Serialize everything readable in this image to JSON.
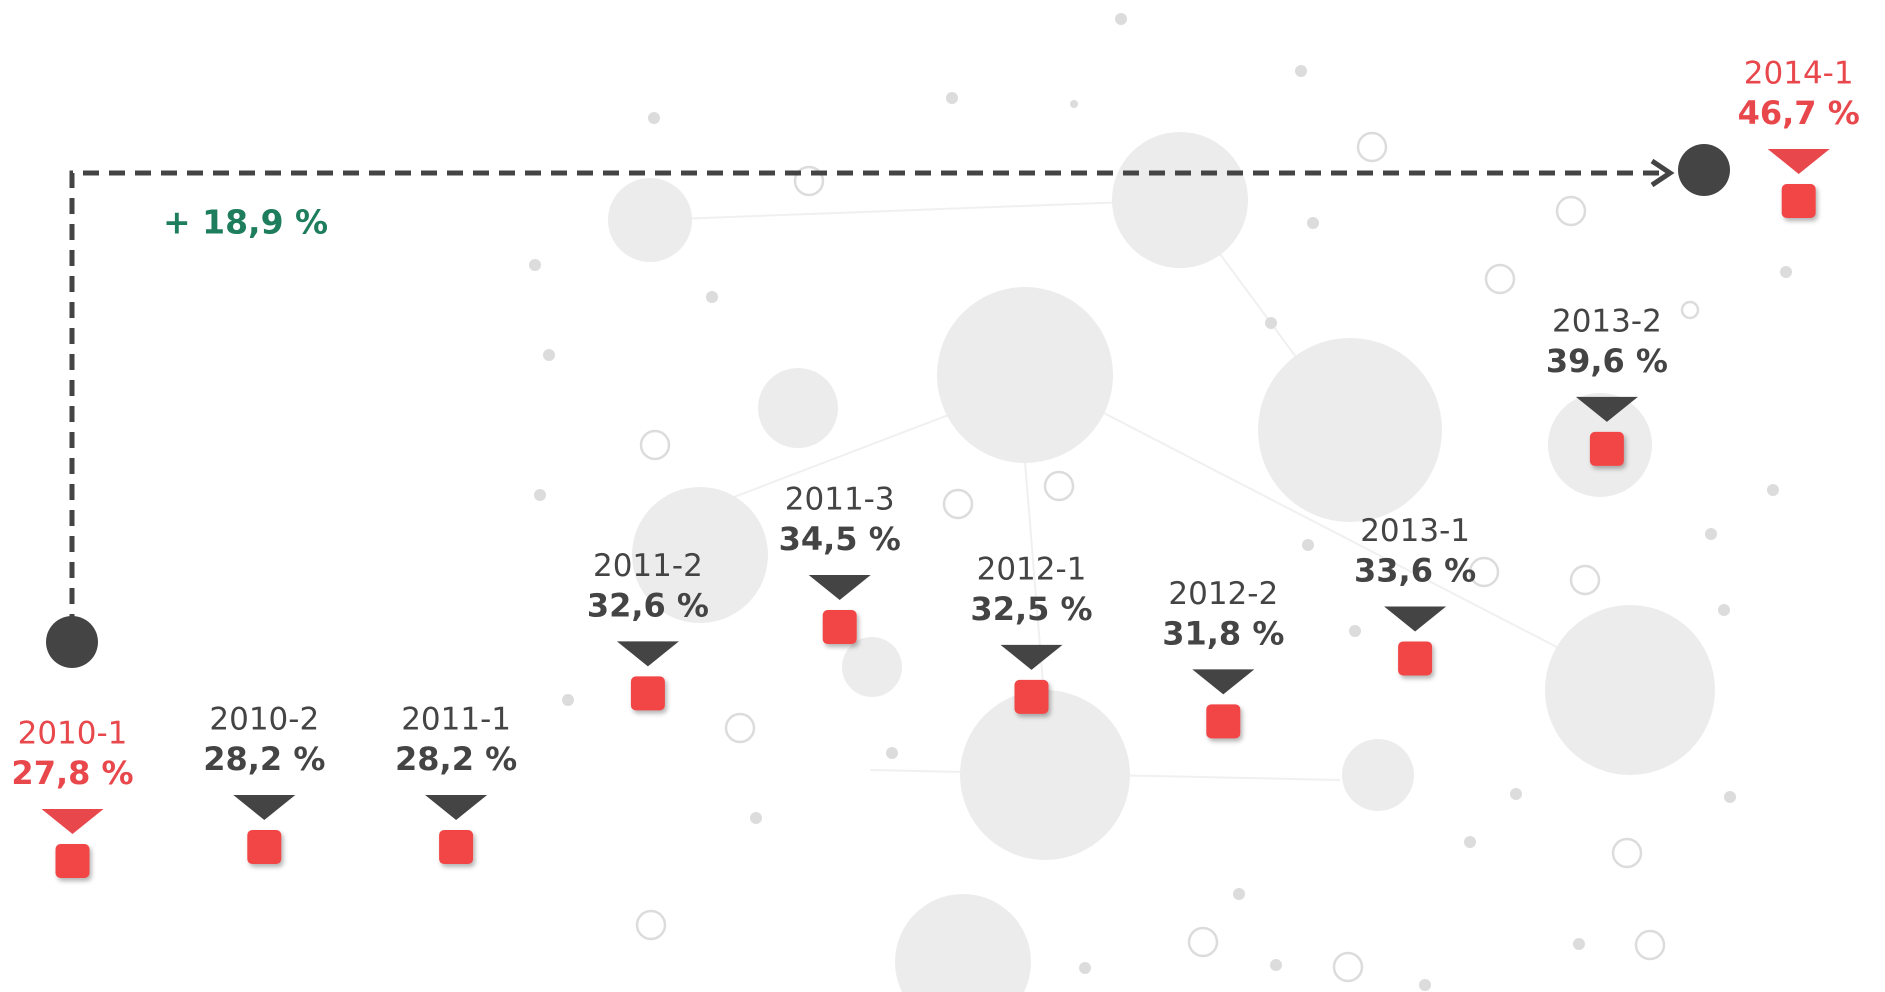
{
  "chart_data": {
    "type": "marker",
    "categories": [
      "2010-1",
      "2010-2",
      "2011-1",
      "2011-2",
      "2011-3",
      "2012-1",
      "2012-2",
      "2013-1",
      "2013-2",
      "2014-1"
    ],
    "values": [
      27.8,
      28.2,
      28.2,
      32.6,
      34.5,
      32.5,
      31.8,
      33.6,
      39.6,
      46.7
    ],
    "value_labels": [
      "27,8 %",
      "28,2 %",
      "28,2 %",
      "32,6 %",
      "34,5 %",
      "32,5 %",
      "31,8 %",
      "33,6 %",
      "39,6 %",
      "46,7 %"
    ],
    "color": "#f24545",
    "label_colors": [
      "#e8474c",
      "#444444",
      "#444444",
      "#444444",
      "#444444",
      "#444444",
      "#444444",
      "#444444",
      "#444444",
      "#e8474c"
    ],
    "annotation": "+ 18,9 %",
    "annotation_color": "#1e7d5c"
  }
}
